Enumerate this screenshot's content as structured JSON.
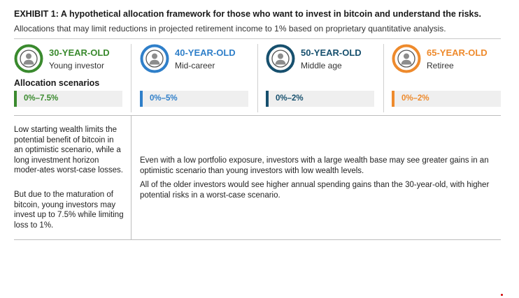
{
  "exhibit": {
    "title": "EXHIBIT 1: A hypothetical allocation framework for those who want to invest in bitcoin and understand the risks.",
    "subtitle": "Allocations that may limit reductions in projected retirement income to 1% based on proprietary quantitative analysis."
  },
  "profiles": [
    {
      "age": "30-YEAR-OLD",
      "stage": "Young investor",
      "range": "0%–7.5%",
      "color": "#3a8a2e",
      "icon": "user-icon"
    },
    {
      "age": "40-YEAR-OLD",
      "stage": "Mid-career",
      "range": "0%–5%",
      "color": "#2f7fc9",
      "icon": "user-icon"
    },
    {
      "age": "50-YEAR-OLD",
      "stage": "Middle age",
      "range": "0%–2%",
      "color": "#17506e",
      "icon": "user-icon"
    },
    {
      "age": "65-YEAR-OLD",
      "stage": "Retiree",
      "range": "0%–2%",
      "color": "#ee8a2c",
      "icon": "user-icon"
    }
  ],
  "allocation_label": "Allocation scenarios",
  "notes": {
    "left_1": "Low starting wealth limits the potential benefit of bitcoin in an optimistic scenario, while a long investment horizon moder-ates worst-case losses.",
    "left_2": "But due to the maturation of bitcoin, young investors may invest up to 7.5% while limiting loss to 1%.",
    "right_1": "Even with a low portfolio exposure, investors with a large wealth base may see greater gains in an optimistic scenario than young investors with low wealth levels.",
    "right_2": "All of the older investors would see higher annual spending gains than the 30-year-old, with higher potential risks in a worst-case scenario."
  }
}
